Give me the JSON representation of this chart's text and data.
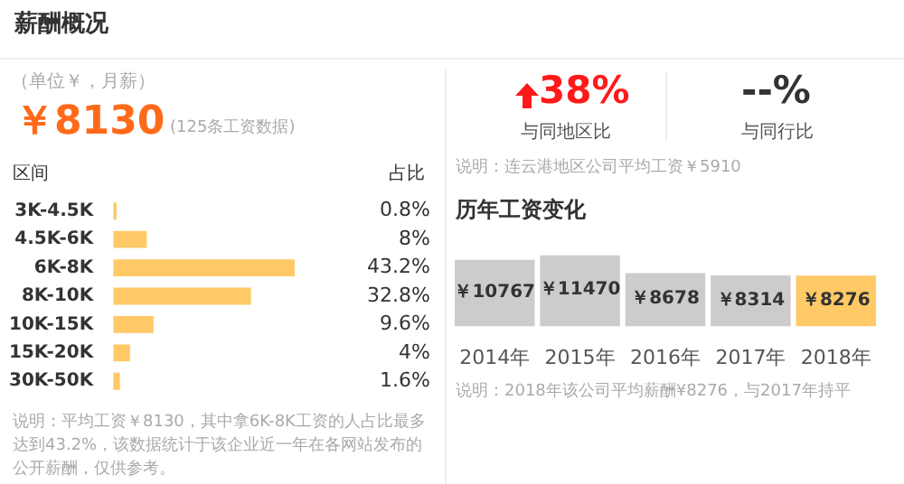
{
  "chart_data": [
    {
      "type": "bar",
      "title": "薪酬概况",
      "subtitle": "（单位￥，月薪）",
      "ylabel": "区间",
      "xlabel": "占比",
      "orientation": "horizontal",
      "categories": [
        "3K-4.5K",
        "4.5K-6K",
        "6K-8K",
        "8K-10K",
        "10K-15K",
        "15K-20K",
        "30K-50K"
      ],
      "values": [
        0.8,
        8,
        43.2,
        32.8,
        9.6,
        4,
        1.6
      ],
      "value_labels": [
        "0.8%",
        "8%",
        "43.2%",
        "32.8%",
        "9.6%",
        "4%",
        "1.6%"
      ],
      "colors": [
        "#ffc966",
        "#ffc966",
        "#ffc966",
        "#ffc966",
        "#ffc966",
        "#ffc966",
        "#ffc966"
      ],
      "annotations": [
        "￥8130",
        "(125条工资数据)",
        "说明：平均工资￥8130，其中拿6K-8K工资的人占比最多达到43.2%，该数据统计于该企业近一年在各网站发布的公开薪酬，仅供参考。"
      ]
    },
    {
      "type": "other",
      "annotations": [
        "38%",
        "与同地区比",
        "--%",
        "与同行比",
        "说明：连云港地区公司平均工资￥5910"
      ]
    },
    {
      "type": "bar",
      "title": "历年工资变化",
      "categories": [
        "2014年",
        "2015年",
        "2016年",
        "2017年",
        "2018年"
      ],
      "values": [
        10767,
        11470,
        8678,
        8314,
        8276
      ],
      "value_labels": [
        "￥10767",
        "￥11470",
        "￥8678",
        "￥8314",
        "￥8276"
      ],
      "colors": [
        "#cccccc",
        "#cccccc",
        "#cccccc",
        "#cccccc",
        "#ffc966"
      ],
      "annotations": [
        "说明：2018年该公司平均薪酬¥8276，与2017年持平"
      ]
    }
  ]
}
